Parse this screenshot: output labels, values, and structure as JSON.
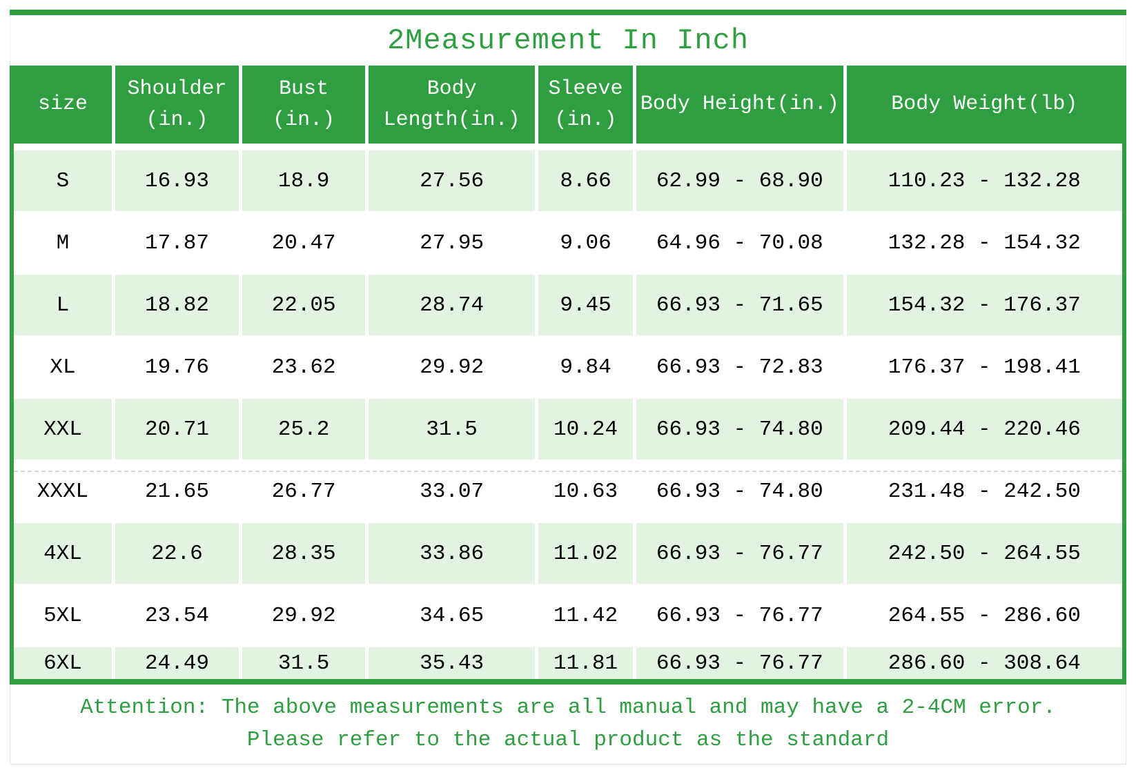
{
  "chart_data": {
    "type": "table",
    "title": "2Measurement In Inch",
    "columns": [
      "size",
      "Shoulder (in.)",
      "Bust (in.)",
      "Body Length(in.)",
      "Sleeve (in.)",
      "Body Height(in.)",
      "Body Weight(lb)"
    ],
    "rows": [
      [
        "S",
        "16.93",
        "18.9",
        "27.56",
        "8.66",
        "62.99 - 68.90",
        "110.23 - 132.28"
      ],
      [
        "M",
        "17.87",
        "20.47",
        "27.95",
        "9.06",
        "64.96 - 70.08",
        "132.28 - 154.32"
      ],
      [
        "L",
        "18.82",
        "22.05",
        "28.74",
        "9.45",
        "66.93 - 71.65",
        "154.32 - 176.37"
      ],
      [
        "XL",
        "19.76",
        "23.62",
        "29.92",
        "9.84",
        "66.93 - 72.83",
        "176.37 - 198.41"
      ],
      [
        "XXL",
        "20.71",
        "25.2",
        "31.5",
        "10.24",
        "66.93 - 74.80",
        "209.44 - 220.46"
      ],
      [
        "XXXL",
        "21.65",
        "26.77",
        "33.07",
        "10.63",
        "66.93 - 74.80",
        "231.48 - 242.50"
      ],
      [
        "4XL",
        "22.6",
        "28.35",
        "33.86",
        "11.02",
        "66.93 - 76.77",
        "242.50 - 264.55"
      ],
      [
        "5XL",
        "23.54",
        "29.92",
        "34.65",
        "11.42",
        "66.93 - 76.77",
        "264.55 - 286.60"
      ],
      [
        "6XL",
        "24.49",
        "31.5",
        "35.43",
        "11.81",
        "66.93 - 76.77",
        "286.60 - 308.64"
      ]
    ],
    "footnote_line1": "Attention: The above measurements are all manual and may have a 2-4CM error.",
    "footnote_line2": "Please refer to the actual product as the standard",
    "layout": {
      "header_position": "top",
      "row_striping": "odd-rows-light-green",
      "grid": "white-gutters-between-cells"
    }
  },
  "colors": {
    "green": "#2f9e41",
    "row_tint": "#e2f3e2",
    "header_text": "#ffffff",
    "cell_text": "#000000",
    "note_border": "#e2e2e2"
  }
}
